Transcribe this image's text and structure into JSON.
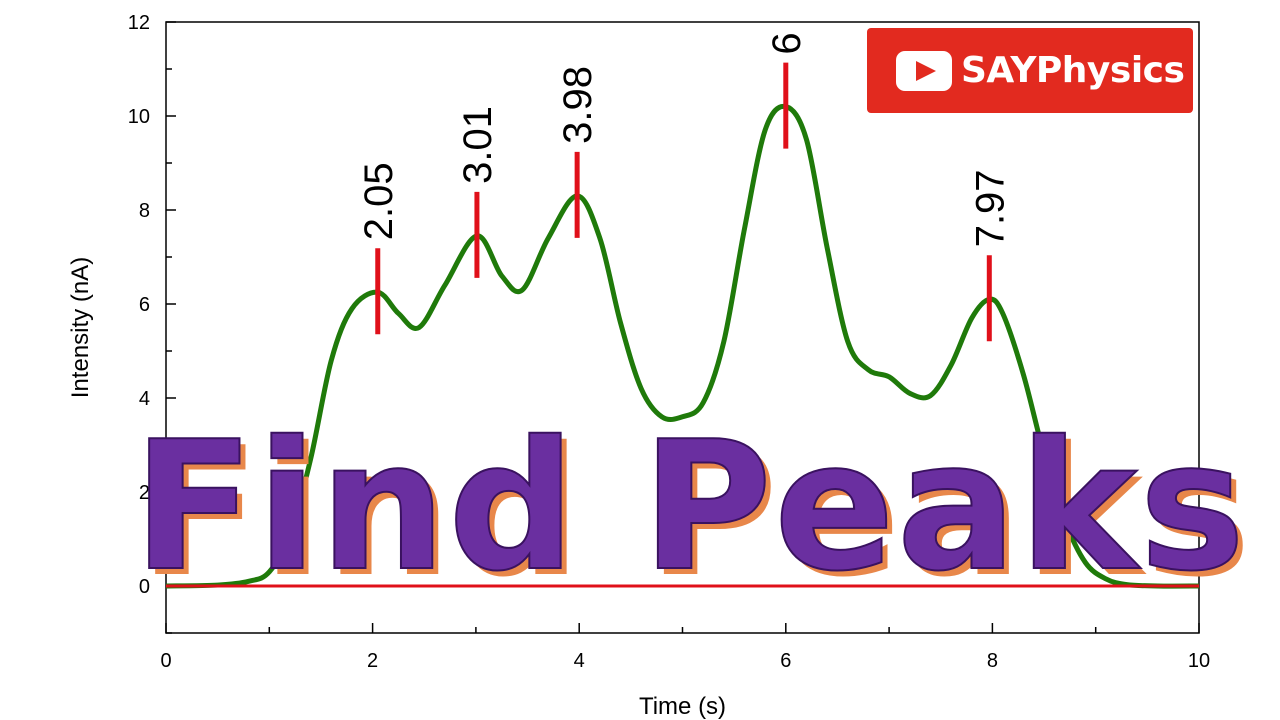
{
  "brand": {
    "name": "SAYPhysics",
    "icon": "play-icon",
    "color": "#e22a1f"
  },
  "overlay": {
    "text": "Find Peaks",
    "fill": "#6a2fa0",
    "shadow": "#e8874a"
  },
  "chart_data": {
    "type": "line",
    "title": "",
    "xlabel": "Time (s)",
    "ylabel": "Intensity (nA)",
    "xlim": [
      0,
      10
    ],
    "ylim": [
      -1,
      12
    ],
    "xticks": [
      0,
      2,
      4,
      6,
      8,
      10
    ],
    "yticks": [
      0,
      2,
      4,
      6,
      8,
      10,
      12
    ],
    "grid": false,
    "series": [
      {
        "color": "#1f7a0a",
        "x": [
          0,
          0.5,
          0.8,
          1.0,
          1.2,
          1.4,
          1.6,
          1.8,
          2.05,
          2.25,
          2.45,
          2.7,
          3.01,
          3.25,
          3.45,
          3.7,
          3.98,
          4.2,
          4.4,
          4.6,
          4.8,
          5.0,
          5.2,
          5.4,
          5.6,
          5.8,
          6.0,
          6.2,
          6.4,
          6.6,
          6.8,
          7.0,
          7.2,
          7.4,
          7.6,
          7.8,
          7.97,
          8.1,
          8.3,
          8.5,
          8.7,
          8.9,
          9.1,
          9.3,
          9.6,
          10.0
        ],
        "y": [
          0,
          0.02,
          0.1,
          0.3,
          1.1,
          2.7,
          4.8,
          5.9,
          6.25,
          5.8,
          5.5,
          6.4,
          7.45,
          6.6,
          6.3,
          7.4,
          8.3,
          7.4,
          5.6,
          4.2,
          3.6,
          3.6,
          3.9,
          5.2,
          7.6,
          9.7,
          10.2,
          9.5,
          7.2,
          5.2,
          4.6,
          4.45,
          4.1,
          4.05,
          4.7,
          5.7,
          6.1,
          5.8,
          4.5,
          2.8,
          1.4,
          0.5,
          0.15,
          0.03,
          0,
          0
        ]
      },
      {
        "color": "#e0101a",
        "x": [
          0,
          10
        ],
        "y": [
          0,
          0
        ]
      }
    ],
    "peaks": [
      {
        "x": 2.05,
        "y": 6.25,
        "label": "2.05"
      },
      {
        "x": 3.01,
        "y": 7.45,
        "label": "3.01"
      },
      {
        "x": 3.98,
        "y": 8.3,
        "label": "3.98"
      },
      {
        "x": 6.0,
        "y": 10.2,
        "label": "6"
      },
      {
        "x": 7.97,
        "y": 6.1,
        "label": "7.97"
      }
    ],
    "peak_marker_color": "#e0101a"
  }
}
